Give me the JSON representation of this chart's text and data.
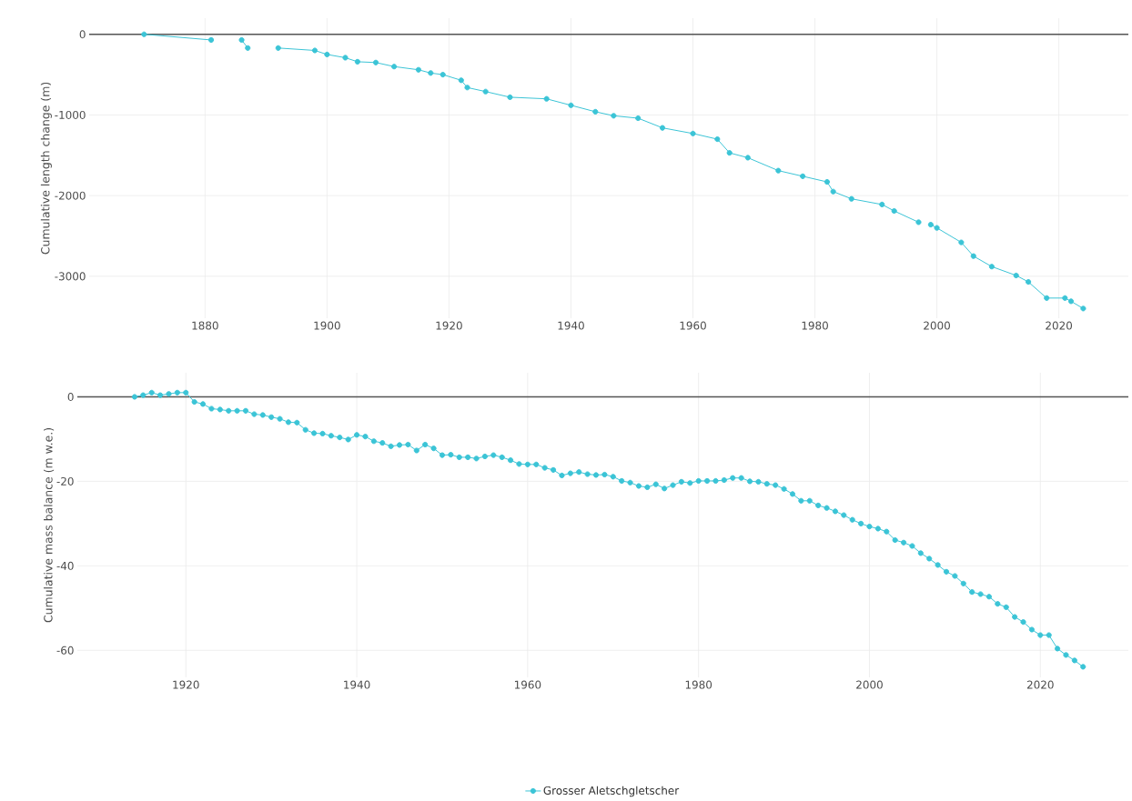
{
  "chart_data": [
    {
      "type": "line",
      "ylabel": "Cumulative length change (m)",
      "xlim": [
        1861,
        2031.4
      ],
      "ylim": [
        -3520,
        200
      ],
      "xticks": [
        1880,
        1900,
        1920,
        1940,
        1960,
        1980,
        2000,
        2020
      ],
      "yticks": [
        0,
        -1000,
        -2000,
        -3000
      ],
      "grid": true,
      "marker": "circle",
      "line_style": "solid",
      "ref_lines": [
        {
          "axis": "y",
          "value": 0,
          "color": "#555555"
        }
      ],
      "series": [
        {
          "color": "#3bc4d6",
          "x": [
            1870,
            1881,
            1883,
            1886,
            1887,
            1890,
            1892,
            1898,
            1900,
            1903,
            1905,
            1908,
            1911,
            1915,
            1917,
            1919,
            1922,
            1923,
            1926,
            1930,
            1936,
            1940,
            1944,
            1947,
            1951,
            1955,
            1960,
            1964,
            1966,
            1969,
            1974,
            1978,
            1982,
            1983,
            1986,
            1991,
            1993,
            1997,
            1998,
            1999,
            2000,
            2004,
            2006,
            2009,
            2013,
            2015,
            2018,
            2021,
            2022,
            2024
          ],
          "values": [
            0,
            -70,
            null,
            -70,
            -170,
            null,
            -170,
            -200,
            -250,
            -290,
            -340,
            -350,
            -400,
            -440,
            -480,
            -500,
            -570,
            -660,
            -710,
            -780,
            -800,
            -880,
            -960,
            -1010,
            -1040,
            -1160,
            -1230,
            -1300,
            -1470,
            -1530,
            -1690,
            -1760,
            -1830,
            -1950,
            -2040,
            -2110,
            -2190,
            -2330,
            null,
            -2360,
            -2400,
            -2580,
            -2750,
            -2880,
            -2990,
            -3070,
            -3270,
            -3270,
            -3310,
            -3400
          ]
        }
      ]
    },
    {
      "type": "line",
      "ylabel": "Cumulative mass balance (m w.e.)",
      "xlim": [
        1907.3,
        2030.3
      ],
      "ylim": [
        -66.4,
        5.7
      ],
      "xticks": [
        1920,
        1940,
        1960,
        1980,
        2000,
        2020
      ],
      "yticks": [
        0,
        -20,
        -40,
        -60
      ],
      "grid": true,
      "marker": "circle",
      "line_style": "solid",
      "legend": "bottom",
      "ref_lines": [
        {
          "axis": "y",
          "value": 0,
          "color": "#555555"
        }
      ],
      "series": [
        {
          "name": "Grosser Aletschgletscher",
          "color": "#3bc4d6",
          "x": [
            1914,
            1915,
            1916,
            1917,
            1918,
            1919,
            1920,
            1921,
            1922,
            1923,
            1924,
            1925,
            1926,
            1927,
            1928,
            1929,
            1930,
            1931,
            1932,
            1933,
            1934,
            1935,
            1936,
            1937,
            1938,
            1939,
            1940,
            1941,
            1942,
            1943,
            1944,
            1945,
            1946,
            1947,
            1948,
            1949,
            1950,
            1951,
            1952,
            1953,
            1954,
            1955,
            1956,
            1957,
            1958,
            1959,
            1960,
            1961,
            1962,
            1963,
            1964,
            1965,
            1966,
            1967,
            1968,
            1969,
            1970,
            1971,
            1972,
            1973,
            1974,
            1975,
            1976,
            1977,
            1978,
            1979,
            1980,
            1981,
            1982,
            1983,
            1984,
            1985,
            1986,
            1987,
            1988,
            1989,
            1990,
            1991,
            1992,
            1993,
            1994,
            1995,
            1996,
            1997,
            1998,
            1999,
            2000,
            2001,
            2002,
            2003,
            2004,
            2005,
            2006,
            2007,
            2008,
            2009,
            2010,
            2011,
            2012,
            2013,
            2014,
            2015,
            2016,
            2017,
            2018,
            2019,
            2020,
            2021,
            2022,
            2023,
            2024,
            2025
          ],
          "values": [
            0.0,
            0.4,
            1.0,
            0.4,
            0.7,
            1.0,
            1.0,
            -1.2,
            -1.7,
            -2.8,
            -3.0,
            -3.3,
            -3.3,
            -3.3,
            -4.1,
            -4.3,
            -4.8,
            -5.2,
            -6.0,
            -6.1,
            -7.8,
            -8.6,
            -8.7,
            -9.2,
            -9.6,
            -10.1,
            -9.0,
            -9.4,
            -10.5,
            -10.9,
            -11.7,
            -11.4,
            -11.3,
            -12.7,
            -11.3,
            -12.2,
            -13.8,
            -13.7,
            -14.3,
            -14.3,
            -14.6,
            -14.1,
            -13.8,
            -14.3,
            -15.0,
            -15.9,
            -16.0,
            -16.0,
            -16.8,
            -17.3,
            -18.6,
            -18.1,
            -17.8,
            -18.3,
            -18.5,
            -18.4,
            -18.9,
            -19.9,
            -20.3,
            -21.1,
            -21.4,
            -20.7,
            -21.7,
            -20.9,
            -20.1,
            -20.4,
            -19.9,
            -19.9,
            -19.9,
            -19.7,
            -19.2,
            -19.2,
            -20.0,
            -20.1,
            -20.6,
            -20.9,
            -21.8,
            -23.0,
            -24.6,
            -24.6,
            -25.7,
            -26.3,
            -27.1,
            -28.0,
            -29.1,
            -30.0,
            -30.7,
            -31.2,
            -31.9,
            -33.9,
            -34.5,
            -35.3,
            -37.0,
            -38.3,
            -39.8,
            -41.4,
            -42.4,
            -44.2,
            -46.2,
            -46.7,
            -47.3,
            -49.0,
            -49.8,
            -52.1,
            -53.3,
            -55.1,
            -56.4,
            -56.4,
            -59.6,
            -61.1,
            -62.4,
            -63.9
          ]
        }
      ]
    }
  ]
}
